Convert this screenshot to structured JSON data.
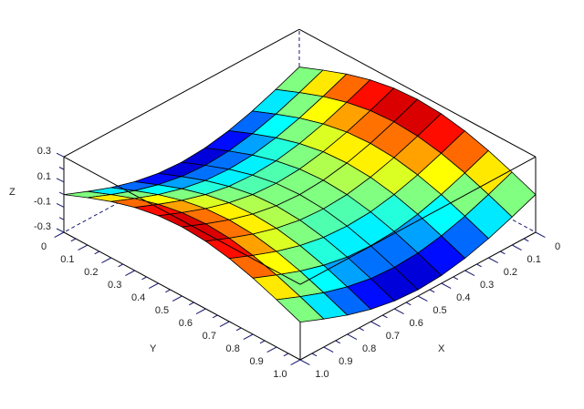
{
  "chart_data": {
    "type": "surface",
    "xlabel": "X",
    "ylabel": "Y",
    "zlabel": "Z",
    "x": [
      0,
      0.1,
      0.2,
      0.3,
      0.4,
      0.5,
      0.6,
      0.7,
      0.8,
      0.9,
      1.0
    ],
    "y": [
      0,
      0.1,
      0.2,
      0.3,
      0.4,
      0.5,
      0.6,
      0.7,
      0.8,
      0.9,
      1.0
    ],
    "z_rows_by_y": [
      [
        0,
        -0.077,
        -0.147,
        -0.202,
        -0.238,
        -0.25,
        -0.238,
        -0.202,
        -0.147,
        -0.077,
        0
      ],
      [
        0.077,
        0,
        -0.07,
        -0.125,
        -0.161,
        -0.173,
        -0.161,
        -0.125,
        -0.07,
        0,
        0.077
      ],
      [
        0.147,
        0.07,
        0,
        -0.055,
        -0.091,
        -0.103,
        -0.091,
        -0.055,
        0,
        0.07,
        0.147
      ],
      [
        0.202,
        0.125,
        0.055,
        0,
        -0.036,
        -0.048,
        -0.036,
        0,
        0.055,
        0.125,
        0.202
      ],
      [
        0.238,
        0.161,
        0.091,
        0.036,
        0,
        -0.012,
        0,
        0.036,
        0.091,
        0.161,
        0.238
      ],
      [
        0.25,
        0.173,
        0.103,
        0.048,
        0.012,
        0,
        0.012,
        0.048,
        0.103,
        0.173,
        0.25
      ],
      [
        0.238,
        0.161,
        0.091,
        0.036,
        0,
        -0.012,
        0,
        0.036,
        0.091,
        0.161,
        0.238
      ],
      [
        0.202,
        0.125,
        0.055,
        0,
        -0.036,
        -0.048,
        -0.036,
        0,
        0.055,
        0.125,
        0.202
      ],
      [
        0.147,
        0.07,
        0,
        -0.055,
        -0.091,
        -0.103,
        -0.091,
        -0.055,
        0,
        0.07,
        0.147
      ],
      [
        0.077,
        0,
        -0.07,
        -0.125,
        -0.161,
        -0.173,
        -0.161,
        -0.125,
        -0.07,
        0,
        0.077
      ],
      [
        0,
        -0.077,
        -0.147,
        -0.202,
        -0.238,
        -0.25,
        -0.238,
        -0.202,
        -0.147,
        -0.077,
        0
      ]
    ],
    "xlim": [
      0,
      1
    ],
    "ylim": [
      0,
      1
    ],
    "zlim": [
      -0.3,
      0.3
    ],
    "x_tick_labels": [
      "0",
      "0.1",
      "0.2",
      "0.3",
      "0.4",
      "0.5",
      "0.6",
      "0.7",
      "0.8",
      "0.9",
      "1.0"
    ],
    "y_tick_labels": [
      "0",
      "0.1",
      "0.2",
      "0.3",
      "0.4",
      "0.5",
      "0.6",
      "0.7",
      "0.8",
      "0.9",
      "1.0"
    ],
    "z_ticks": [
      0.3,
      0.1,
      -0.1,
      -0.3
    ],
    "z_tick_labels": [
      "0.3",
      "0.1",
      "-0.1",
      "-0.3"
    ],
    "colormap": "jet",
    "grid": false,
    "box_color": "#000000",
    "tick_color": "#1a1a70"
  }
}
